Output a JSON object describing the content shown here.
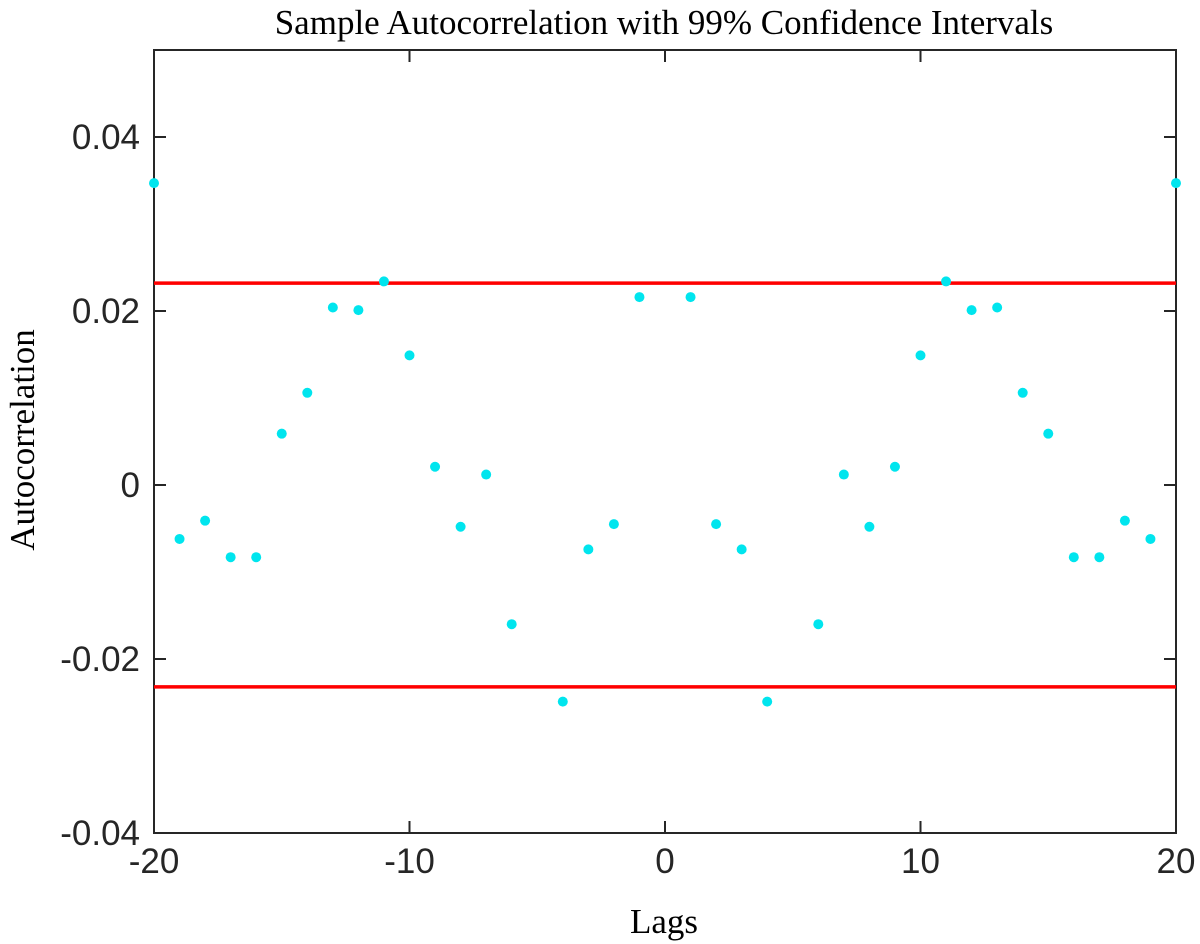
{
  "chart_data": {
    "type": "scatter",
    "title": "Sample Autocorrelation with 99% Confidence Intervals",
    "xlabel": "Lags",
    "ylabel": "Autocorrelation",
    "xlim": [
      -20,
      20
    ],
    "ylim": [
      -0.04,
      0.05
    ],
    "xticks": [
      -20,
      -10,
      0,
      10,
      20
    ],
    "xtick_labels": [
      "-20",
      "-10",
      "0",
      "10",
      "20"
    ],
    "yticks": [
      -0.04,
      -0.02,
      0,
      0.02,
      0.04
    ],
    "ytick_labels": [
      "-0.04",
      "-0.02",
      "0",
      "0.02",
      "0.04"
    ],
    "grid": false,
    "series": [
      {
        "color": "#00e5ee",
        "x": [
          -20,
          -19,
          -18,
          -17,
          -16,
          -15,
          -14,
          -13,
          -12,
          -11,
          -10,
          -9,
          -8,
          -7,
          -6,
          -4,
          -3,
          -2,
          -1,
          1,
          2,
          3,
          4,
          6,
          7,
          8,
          9,
          10,
          11,
          12,
          13,
          14,
          15,
          16,
          17,
          18,
          19,
          20
        ],
        "y": [
          0.0347,
          -0.0062,
          -0.0041,
          -0.0083,
          -0.0083,
          0.0059,
          0.0106,
          0.0204,
          0.0201,
          0.0234,
          0.0149,
          0.0021,
          -0.0048,
          0.0012,
          -0.016,
          -0.0249,
          -0.0074,
          -0.0045,
          0.0216,
          0.0216,
          -0.0045,
          -0.0074,
          -0.0249,
          -0.016,
          0.0012,
          -0.0048,
          0.0021,
          0.0149,
          0.0234,
          0.0201,
          0.0204,
          0.0106,
          0.0059,
          -0.0083,
          -0.0083,
          -0.0041,
          -0.0062,
          0.0347
        ]
      }
    ],
    "reference_lines": [
      {
        "y": 0.0232,
        "color": "#ff0000"
      },
      {
        "y": -0.0232,
        "color": "#ff0000"
      }
    ],
    "colors": {
      "axis": "#262626",
      "background": "#ffffff"
    }
  }
}
